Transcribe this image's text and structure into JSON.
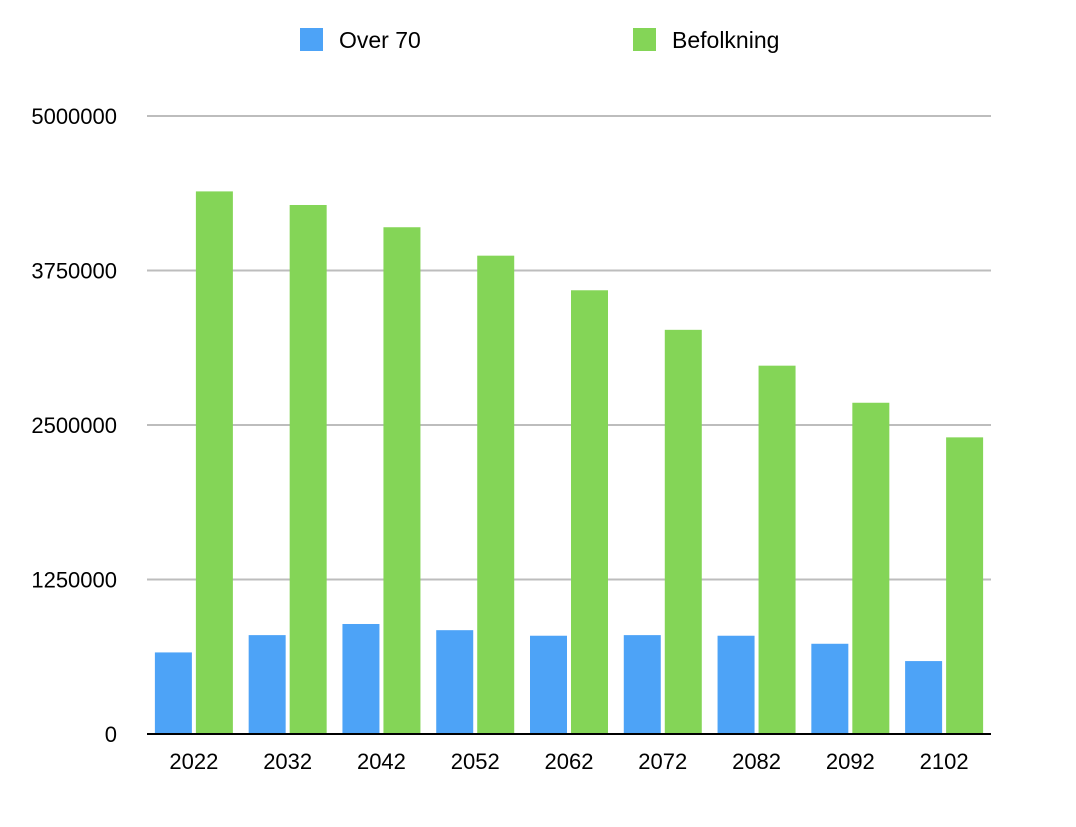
{
  "chart_data": {
    "type": "bar",
    "title": "",
    "xlabel": "",
    "ylabel": "",
    "categories": [
      "2022",
      "2032",
      "2042",
      "2052",
      "2062",
      "2072",
      "2082",
      "2092",
      "2102"
    ],
    "series": [
      {
        "name": "Over 70",
        "color": "#4da3f7",
        "values": [
          660000,
          800000,
          890000,
          840000,
          795000,
          800000,
          795000,
          730000,
          590000
        ]
      },
      {
        "name": "Befolkning",
        "color": "#84d557",
        "values": [
          4390000,
          4280000,
          4100000,
          3870000,
          3590000,
          3270000,
          2980000,
          2680000,
          2400000
        ]
      }
    ],
    "ylim": [
      0,
      5000000
    ],
    "yticks": [
      0,
      1250000,
      2500000,
      3750000,
      5000000
    ],
    "ytick_labels": [
      "0",
      "1250000",
      "2500000",
      "3750000",
      "5000000"
    ],
    "grid": true,
    "legend_position": "top"
  }
}
